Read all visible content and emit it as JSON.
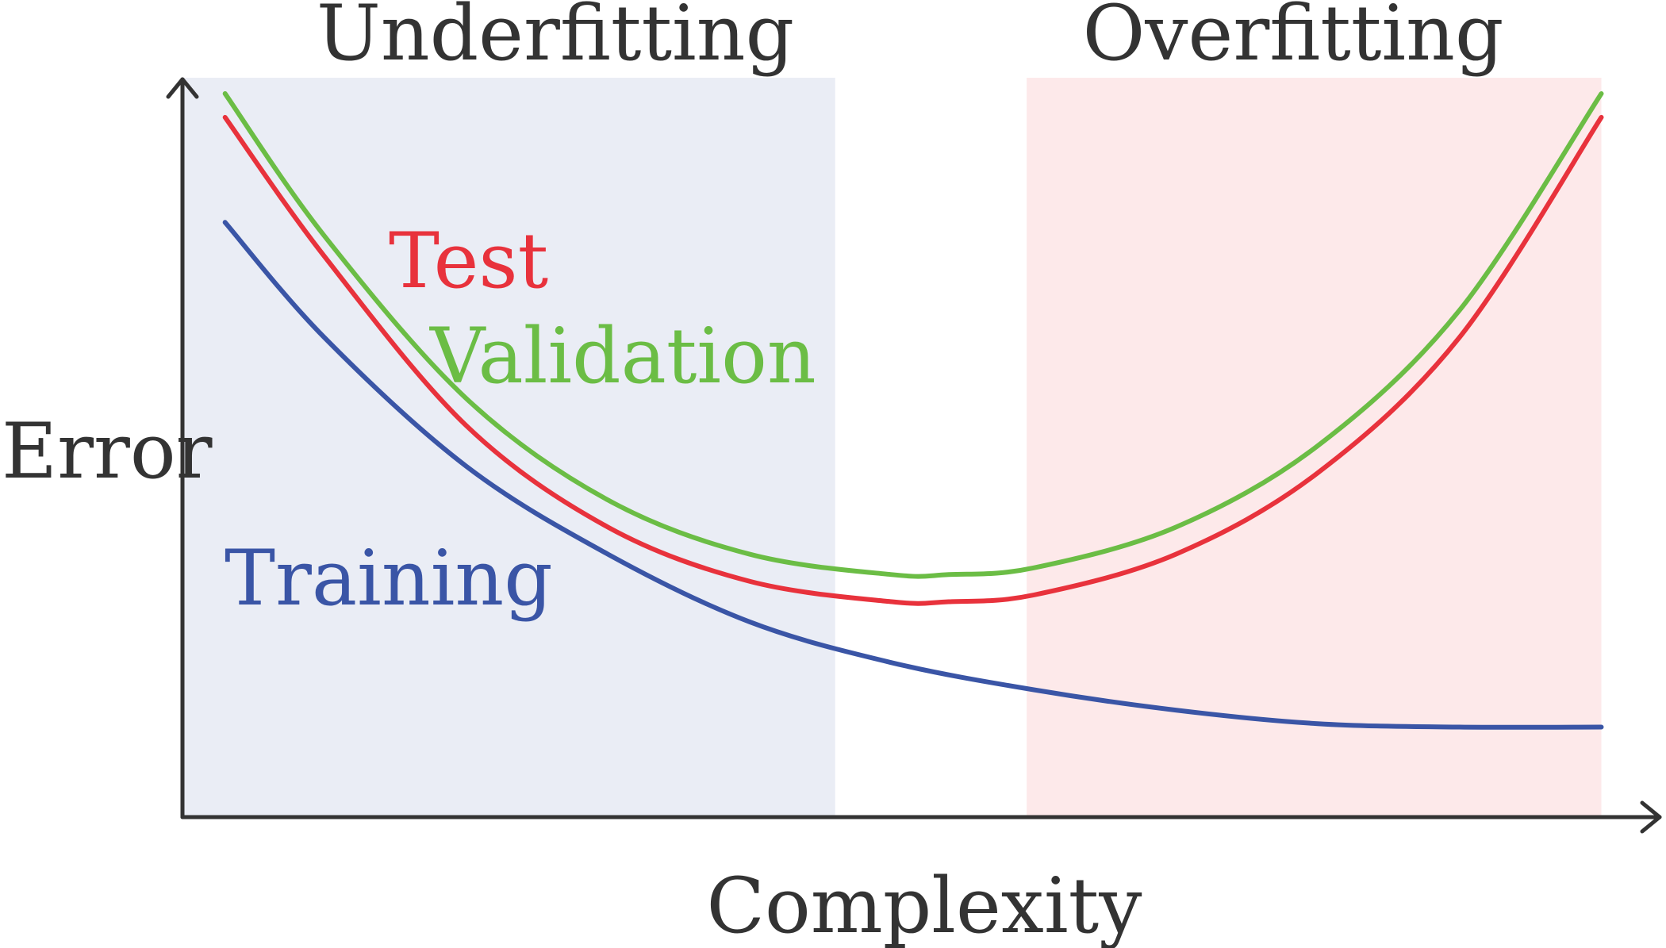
{
  "chart_data": {
    "type": "line",
    "title": "",
    "xlabel": "Complexity",
    "ylabel": "Error",
    "grid": false,
    "legend": "inline",
    "regions": [
      {
        "name": "Underfitting",
        "x_start": 0.0,
        "x_end": 0.46,
        "color": "#eaedf5"
      },
      {
        "name": "Overfitting",
        "x_start": 0.595,
        "x_end": 1.0,
        "color": "#fde9ea"
      }
    ],
    "series": [
      {
        "name": "Training",
        "color": "#3a55a6",
        "x": [
          0.03,
          0.1,
          0.2,
          0.3,
          0.4,
          0.5,
          0.6,
          0.7,
          0.8,
          0.9,
          1.0
        ],
        "y": [
          0.81,
          0.64,
          0.45,
          0.32,
          0.22,
          0.16,
          0.12,
          0.09,
          0.07,
          0.065,
          0.065
        ]
      },
      {
        "name": "Test",
        "color": "#e8323c",
        "x": [
          0.03,
          0.1,
          0.2,
          0.3,
          0.4,
          0.5,
          0.54,
          0.6,
          0.7,
          0.8,
          0.9,
          1.0
        ],
        "y": [
          0.965,
          0.76,
          0.51,
          0.36,
          0.28,
          0.25,
          0.25,
          0.26,
          0.32,
          0.44,
          0.64,
          0.965
        ]
      },
      {
        "name": "Validation",
        "color": "#6bbd45",
        "x": [
          0.03,
          0.1,
          0.2,
          0.3,
          0.4,
          0.5,
          0.54,
          0.6,
          0.7,
          0.8,
          0.9,
          1.0
        ],
        "y": [
          1.0,
          0.79,
          0.55,
          0.4,
          0.32,
          0.29,
          0.29,
          0.3,
          0.36,
          0.48,
          0.68,
          1.0
        ]
      }
    ],
    "xlim": [
      0,
      1.04
    ],
    "ylim": [
      0,
      1.0
    ]
  }
}
